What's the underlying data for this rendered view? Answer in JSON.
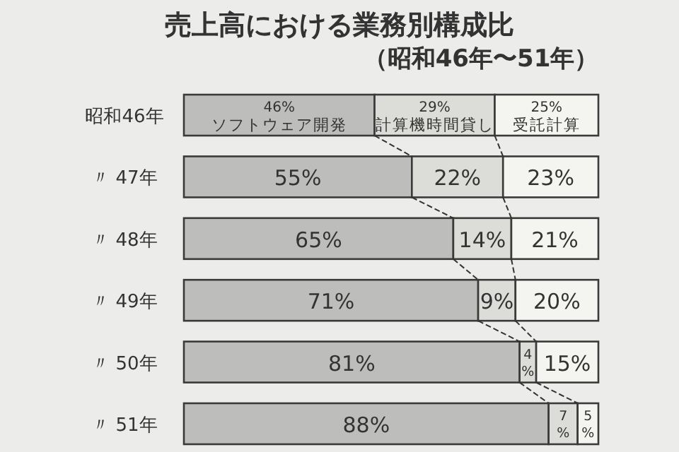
{
  "chart_data": {
    "type": "bar",
    "orientation": "horizontal",
    "stacked": true,
    "legend": false,
    "tick_labels": "y",
    "title": "売上高における業務別構成比",
    "subtitle": "（昭和46年〜51年）",
    "categories": [
      "昭和46年",
      "〃 47年",
      "〃 48年",
      "〃 49年",
      "〃 50年",
      "〃 51年"
    ],
    "xlim": [
      0,
      100
    ],
    "series": [
      {
        "name": "ソフトウェア開発",
        "color": "#bdbdbb",
        "values": [
          46,
          55,
          65,
          71,
          81,
          88
        ],
        "value_labels": [
          "46%",
          "55%",
          "65%",
          "71%",
          "81%",
          "88%"
        ]
      },
      {
        "name": "計算機時間貸し",
        "color": "#dcdcd9",
        "values": [
          29,
          22,
          14,
          9,
          4,
          7
        ],
        "value_labels": [
          "29%",
          "22%",
          "14%",
          "9%",
          "4%",
          "7%"
        ]
      },
      {
        "name": "受託計算",
        "color": "#f4f4f1",
        "values": [
          25,
          23,
          21,
          20,
          15,
          5
        ],
        "value_labels": [
          "25%",
          "23%",
          "21%",
          "20%",
          "15%",
          "5%"
        ]
      }
    ]
  }
}
